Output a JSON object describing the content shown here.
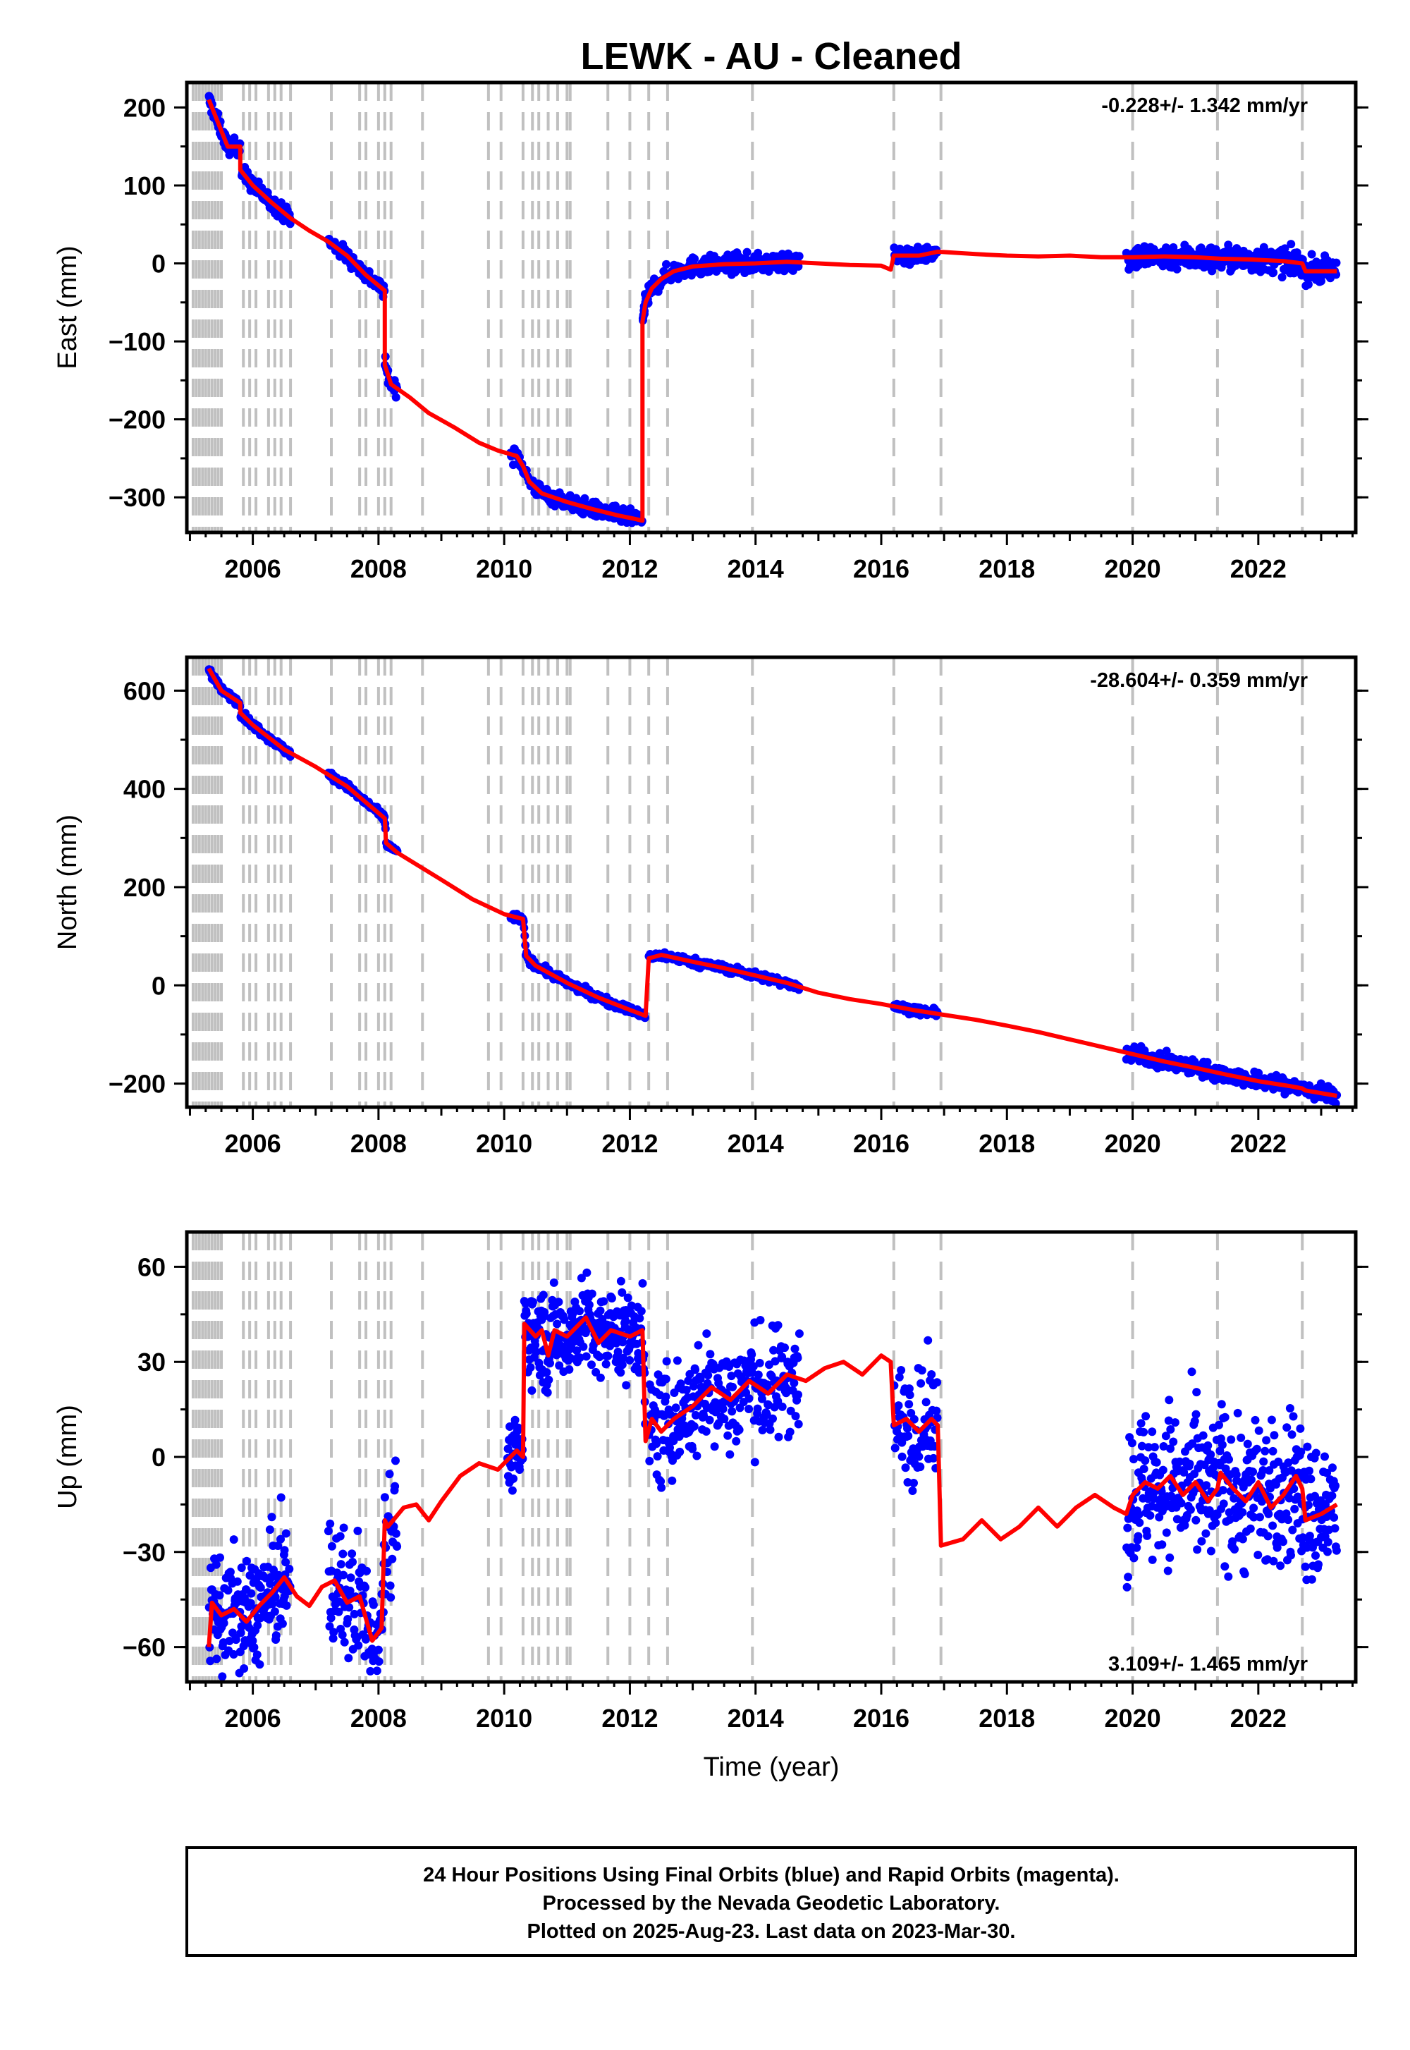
{
  "title": "LEWK  - AU - Cleaned",
  "xlabel": "Time (year)",
  "footer": {
    "line1": "24 Hour Positions Using Final Orbits (blue) and Rapid Orbits (magenta).",
    "line2": "Processed by the Nevada Geodetic Laboratory.",
    "line3": "Plotted on 2025-Aug-23. Last data on 2023-Mar-30."
  },
  "colors": {
    "observations": "#0000ff",
    "model": "#ff0000",
    "steps": "#c0c0c0",
    "frame": "#000000"
  },
  "chart_data": [
    {
      "type": "scatter",
      "panel": "east",
      "ylabel": "East (mm)",
      "rate_label": "-0.228+/- 1.342 mm/yr",
      "rate_position": "top-right",
      "xlim": [
        2004.95,
        2023.55
      ],
      "ylim": [
        -345,
        232
      ],
      "xticks": [
        2006,
        2008,
        2010,
        2012,
        2014,
        2016,
        2018,
        2020,
        2022
      ],
      "yticks": [
        200,
        100,
        0,
        -100,
        -200,
        -300
      ],
      "ytick_labels": [
        "200",
        "100",
        "0",
        "−100",
        "−200",
        "−300"
      ],
      "model_series": {
        "x": [
          2005.3,
          2005.5,
          2005.6,
          2005.8,
          2005.8,
          2006.0,
          2006.3,
          2006.6,
          2006.9,
          2007.2,
          2007.5,
          2007.8,
          2008.1,
          2008.1,
          2008.2,
          2008.5,
          2008.8,
          2009.2,
          2009.6,
          2009.9,
          2010.2,
          2010.3,
          2010.4,
          2010.6,
          2011.0,
          2011.4,
          2011.8,
          2012.1,
          2012.2,
          2012.2,
          2012.25,
          2012.35,
          2012.5,
          2012.7,
          2013.0,
          2013.5,
          2014.0,
          2014.5,
          2015.0,
          2015.5,
          2016.0,
          2016.15,
          2016.2,
          2016.6,
          2016.9,
          2017.5,
          2018.0,
          2018.5,
          2019.0,
          2019.5,
          2020.0,
          2020.5,
          2021.0,
          2021.4,
          2021.9,
          2022.4,
          2022.7,
          2022.75,
          2023.0,
          2023.25
        ],
        "y": [
          210,
          170,
          150,
          150,
          120,
          100,
          78,
          58,
          42,
          28,
          10,
          -15,
          -35,
          -130,
          -155,
          -172,
          -192,
          -210,
          -230,
          -240,
          -247,
          -260,
          -280,
          -295,
          -306,
          -315,
          -323,
          -328,
          -330,
          -75,
          -50,
          -32,
          -20,
          -10,
          -4,
          -1,
          0,
          2,
          0,
          -2,
          -3,
          -8,
          10,
          10,
          15,
          12,
          10,
          9,
          10,
          8,
          8,
          9,
          8,
          6,
          5,
          3,
          0,
          -10,
          -10,
          -10
        ]
      },
      "obs_segments": [
        {
          "x0": 2005.3,
          "x1": 2005.8,
          "n": 80,
          "spread": 5
        },
        {
          "x0": 2005.82,
          "x1": 2006.6,
          "n": 110,
          "spread": 5
        },
        {
          "x0": 2007.2,
          "x1": 2008.3,
          "n": 120,
          "spread": 5
        },
        {
          "x0": 2010.1,
          "x1": 2012.25,
          "n": 230,
          "spread": 5
        },
        {
          "x0": 2012.2,
          "x1": 2014.7,
          "n": 260,
          "spread": 6
        },
        {
          "x0": 2016.2,
          "x1": 2016.9,
          "n": 70,
          "spread": 5
        },
        {
          "x0": 2019.9,
          "x1": 2023.25,
          "n": 380,
          "spread": 8
        }
      ]
    },
    {
      "type": "scatter",
      "panel": "north",
      "ylabel": "North (mm)",
      "rate_label": "-28.604+/- 0.359 mm/yr",
      "rate_position": "top-right",
      "xlim": [
        2004.95,
        2023.55
      ],
      "ylim": [
        -248,
        668
      ],
      "xticks": [
        2006,
        2008,
        2010,
        2012,
        2014,
        2016,
        2018,
        2020,
        2022
      ],
      "yticks": [
        600,
        400,
        200,
        0,
        -200
      ],
      "ytick_labels": [
        "600",
        "400",
        "200",
        "0",
        "−200"
      ],
      "model_series": {
        "x": [
          2005.3,
          2005.5,
          2005.8,
          2005.8,
          2006.0,
          2006.5,
          2007.0,
          2007.5,
          2008.1,
          2008.12,
          2008.3,
          2009.0,
          2009.5,
          2010.0,
          2010.3,
          2010.35,
          2010.5,
          2011.0,
          2011.5,
          2012.0,
          2012.25,
          2012.3,
          2012.5,
          2013.0,
          2013.5,
          2014.0,
          2014.5,
          2015.0,
          2015.5,
          2016.0,
          2016.5,
          2017.0,
          2017.5,
          2018.0,
          2018.5,
          2019.0,
          2019.5,
          2020.0,
          2020.5,
          2021.0,
          2021.5,
          2022.0,
          2022.5,
          2022.7,
          2022.75,
          2023.25
        ],
        "y": [
          645,
          600,
          575,
          555,
          530,
          480,
          445,
          405,
          340,
          290,
          270,
          215,
          175,
          145,
          135,
          60,
          40,
          5,
          -25,
          -50,
          -62,
          55,
          62,
          48,
          35,
          20,
          5,
          -15,
          -28,
          -38,
          -50,
          -60,
          -70,
          -82,
          -95,
          -110,
          -125,
          -140,
          -155,
          -168,
          -182,
          -195,
          -205,
          -210,
          -214,
          -225
        ]
      },
      "obs_segments": [
        {
          "x0": 2005.3,
          "x1": 2006.6,
          "n": 160,
          "spread": 4
        },
        {
          "x0": 2007.2,
          "x1": 2008.3,
          "n": 110,
          "spread": 4
        },
        {
          "x0": 2010.1,
          "x1": 2012.25,
          "n": 230,
          "spread": 4
        },
        {
          "x0": 2012.3,
          "x1": 2014.7,
          "n": 260,
          "spread": 4
        },
        {
          "x0": 2016.2,
          "x1": 2016.9,
          "n": 70,
          "spread": 4
        },
        {
          "x0": 2019.9,
          "x1": 2023.25,
          "n": 380,
          "spread": 8
        }
      ]
    },
    {
      "type": "scatter",
      "panel": "up",
      "ylabel": "Up (mm)",
      "rate_label": "3.109+/- 1.465 mm/yr",
      "rate_position": "bottom-right",
      "xlim": [
        2004.95,
        2023.55
      ],
      "ylim": [
        -71,
        71
      ],
      "xticks": [
        2006,
        2008,
        2010,
        2012,
        2014,
        2016,
        2018,
        2020,
        2022
      ],
      "yticks": [
        60,
        30,
        0,
        -30,
        -60
      ],
      "ytick_labels": [
        "60",
        "30",
        "0",
        "−30",
        "−60"
      ],
      "model_series": {
        "x": [
          2005.3,
          2005.35,
          2005.5,
          2005.7,
          2005.9,
          2006.1,
          2006.3,
          2006.5,
          2006.7,
          2006.9,
          2007.1,
          2007.3,
          2007.5,
          2007.7,
          2007.9,
          2008.05,
          2008.1,
          2008.15,
          2008.4,
          2008.6,
          2008.8,
          2009.0,
          2009.3,
          2009.6,
          2009.9,
          2010.2,
          2010.3,
          2010.32,
          2010.5,
          2010.6,
          2010.7,
          2010.8,
          2011.0,
          2011.3,
          2011.5,
          2011.7,
          2012.0,
          2012.2,
          2012.25,
          2012.35,
          2012.5,
          2012.7,
          2013.0,
          2013.3,
          2013.6,
          2013.9,
          2014.2,
          2014.5,
          2014.8,
          2015.1,
          2015.4,
          2015.7,
          2016.0,
          2016.15,
          2016.2,
          2016.4,
          2016.6,
          2016.8,
          2016.9,
          2016.95,
          2017.3,
          2017.6,
          2017.9,
          2018.2,
          2018.5,
          2018.8,
          2019.1,
          2019.4,
          2019.7,
          2019.9,
          2020.0,
          2020.2,
          2020.4,
          2020.6,
          2020.8,
          2021.0,
          2021.2,
          2021.35,
          2021.4,
          2021.6,
          2021.8,
          2022.0,
          2022.2,
          2022.4,
          2022.6,
          2022.7,
          2022.75,
          2023.0,
          2023.25
        ],
        "y": [
          -60,
          -46,
          -50,
          -48,
          -52,
          -47,
          -43,
          -38,
          -44,
          -47,
          -41,
          -39,
          -46,
          -44,
          -58,
          -54,
          -20,
          -22,
          -16,
          -15,
          -20,
          -14,
          -6,
          -2,
          -4,
          2,
          0,
          42,
          38,
          40,
          32,
          40,
          38,
          44,
          36,
          40,
          38,
          40,
          5,
          12,
          8,
          12,
          16,
          22,
          18,
          24,
          20,
          26,
          24,
          28,
          30,
          26,
          32,
          30,
          10,
          12,
          8,
          12,
          10,
          -28,
          -26,
          -20,
          -26,
          -22,
          -16,
          -22,
          -16,
          -12,
          -16,
          -18,
          -12,
          -8,
          -10,
          -6,
          -12,
          -8,
          -14,
          -10,
          -5,
          -10,
          -14,
          -8,
          -16,
          -12,
          -6,
          -10,
          -20,
          -18,
          -15
        ]
      },
      "obs_segments": [
        {
          "x0": 2005.3,
          "x1": 2006.6,
          "n": 180,
          "spread": 9
        },
        {
          "x0": 2007.2,
          "x1": 2008.3,
          "n": 130,
          "spread": 10
        },
        {
          "x0": 2010.05,
          "x1": 2010.3,
          "n": 40,
          "spread": 5
        },
        {
          "x0": 2010.32,
          "x1": 2012.25,
          "n": 280,
          "spread": 7
        },
        {
          "x0": 2012.3,
          "x1": 2014.7,
          "n": 280,
          "spread": 9
        },
        {
          "x0": 2016.2,
          "x1": 2016.9,
          "n": 80,
          "spread": 9
        },
        {
          "x0": 2019.9,
          "x1": 2023.25,
          "n": 420,
          "spread": 12
        }
      ]
    }
  ],
  "step_epochs": [
    2005.05,
    2005.1,
    2005.15,
    2005.2,
    2005.25,
    2005.3,
    2005.35,
    2005.4,
    2005.45,
    2005.5,
    2005.85,
    2005.95,
    2006.05,
    2006.25,
    2006.35,
    2006.45,
    2006.6,
    2007.25,
    2007.7,
    2007.8,
    2008.0,
    2008.1,
    2008.2,
    2008.7,
    2009.75,
    2009.95,
    2010.3,
    2010.45,
    2010.55,
    2010.7,
    2010.85,
    2011.0,
    2011.05,
    2011.65,
    2012.0,
    2012.3,
    2012.6,
    2013.95,
    2016.2,
    2016.95,
    2020.0,
    2021.35,
    2022.7
  ]
}
